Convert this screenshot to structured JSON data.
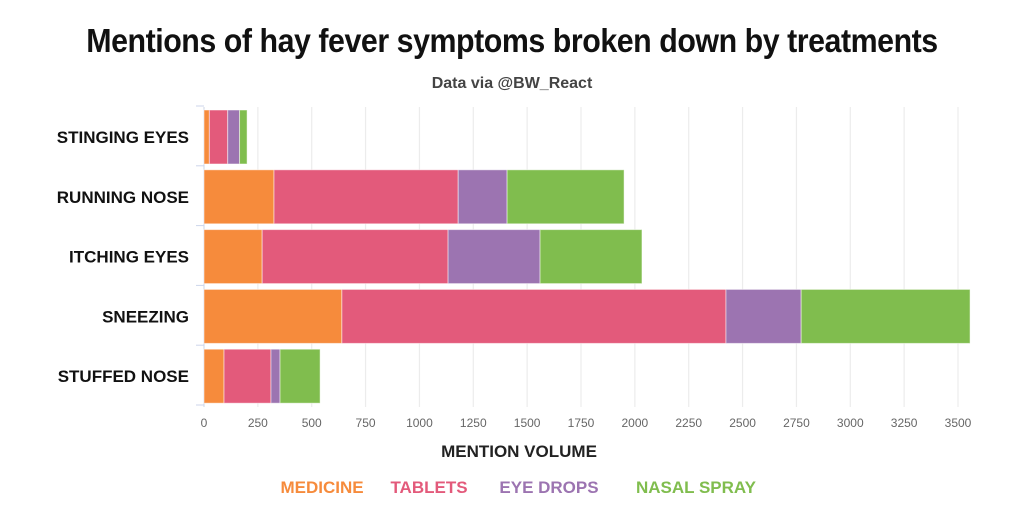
{
  "chart_data": {
    "type": "bar",
    "orientation": "horizontal",
    "stacked": true,
    "title": "Mentions of hay fever symptoms broken down by treatments",
    "subtitle": "Data via @BW_React",
    "xlabel": "MENTION VOLUME",
    "ylabel": "",
    "xlim": [
      0,
      3550
    ],
    "x_ticks": [
      0,
      250,
      500,
      750,
      1000,
      1250,
      1500,
      1750,
      2000,
      2250,
      2500,
      2750,
      3000,
      3250,
      3500
    ],
    "grid": true,
    "legend_position": "bottom",
    "categories": [
      "STINGING EYES",
      "RUNNING NOSE",
      "ITCHING EYES",
      "SNEEZING",
      "STUFFED NOSE"
    ],
    "series": [
      {
        "name": "MEDICINE",
        "color": "#f68b3c",
        "values": [
          25,
          325,
          270,
          640,
          93
        ]
      },
      {
        "name": "TABLETS",
        "color": "#e35a7b",
        "values": [
          85,
          855,
          863,
          1783,
          218
        ]
      },
      {
        "name": "EYE DROPS",
        "color": "#9c74b1",
        "values": [
          55,
          227,
          427,
          349,
          42
        ]
      },
      {
        "name": "NASAL SPRAY",
        "color": "#80bd4e",
        "values": [
          35,
          543,
          473,
          784,
          186
        ]
      }
    ]
  }
}
